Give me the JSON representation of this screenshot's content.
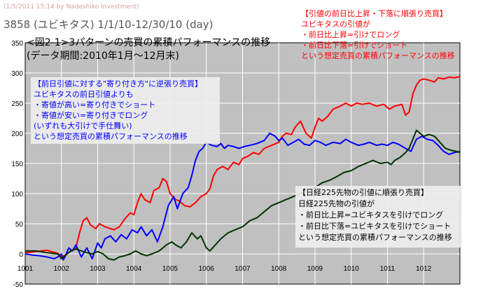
{
  "watermark": "(1/5/2011 15:14 by Nadeshiko Investment)",
  "subtitle": "3858 (ユビキタス)  1/1/10-12/30/10 (day)",
  "title_line1": "<図2-1>3パターンの売買の累積パフォーマンスの推移",
  "title_line2": "(データ期間:2010年1月〜12月末)",
  "annotations": {
    "red": {
      "lines": [
        "【引値の前日比上昇・下落に順張り売買】",
        "ユビキタスの引値が",
        "・前日比上昇=引けでロング",
        "・前日比下落=引けでショート",
        "という想定売買の累積パフォーマンスの推移"
      ],
      "color": "#ff0000"
    },
    "blue": {
      "lines": [
        "【前日引値に対する\"寄り付き方\"に逆張り売買】",
        "ユビキタスの前日引値よりも",
        "・寄値が高い=寄り付きでショート",
        "・寄値が安い=寄り付きでロング",
        "(いずれも大引けで手仕舞い)",
        "という想定売買の累積パフォーマンスの推移"
      ],
      "color": "#0000ff"
    },
    "green": {
      "lines": [
        "【日経225先物の引値に順張り売買】",
        "日経225先物の引値が",
        "・前日比上昇=ユビキタスを引けでロング",
        "・前日比下落=ユビキタスを引けでショート",
        "という想定売買の累積パフォーマンスの推移"
      ],
      "color": "#000000"
    }
  },
  "chart_data": {
    "type": "line",
    "x_categories": [
      "1001",
      "1002",
      "1003",
      "1004",
      "1005",
      "1006",
      "1007",
      "1008",
      "1009",
      "1010",
      "1011",
      "1012"
    ],
    "y_ticks": [
      -50,
      0,
      50,
      100,
      150,
      200,
      250,
      300,
      350
    ],
    "ylim": [
      -50,
      350
    ],
    "grid": true,
    "plot_background": "#c0c0c0",
    "series": [
      {
        "color": "#ff0000",
        "points": [
          [
            0.0,
            2
          ],
          [
            0.3,
            4
          ],
          [
            0.6,
            6
          ],
          [
            0.9,
            1
          ],
          [
            1.0,
            -5
          ],
          [
            1.1,
            -2
          ],
          [
            1.25,
            4
          ],
          [
            1.4,
            10
          ],
          [
            1.5,
            35
          ],
          [
            1.6,
            55
          ],
          [
            1.7,
            60
          ],
          [
            1.8,
            48
          ],
          [
            1.95,
            42
          ],
          [
            2.05,
            50
          ],
          [
            2.2,
            45
          ],
          [
            2.3,
            43
          ],
          [
            2.45,
            40
          ],
          [
            2.6,
            45
          ],
          [
            2.75,
            58
          ],
          [
            2.9,
            68
          ],
          [
            3.0,
            65
          ],
          [
            3.1,
            85
          ],
          [
            3.2,
            100
          ],
          [
            3.3,
            90
          ],
          [
            3.45,
            85
          ],
          [
            3.55,
            105
          ],
          [
            3.7,
            110
          ],
          [
            3.8,
            125
          ],
          [
            3.9,
            120
          ],
          [
            4.0,
            100
          ],
          [
            4.15,
            90
          ],
          [
            4.25,
            88
          ],
          [
            4.4,
            80
          ],
          [
            4.55,
            78
          ],
          [
            4.7,
            85
          ],
          [
            4.85,
            95
          ],
          [
            5.0,
            100
          ],
          [
            5.1,
            108
          ],
          [
            5.2,
            130
          ],
          [
            5.3,
            140
          ],
          [
            5.45,
            145
          ],
          [
            5.6,
            140
          ],
          [
            5.75,
            152
          ],
          [
            5.9,
            148
          ],
          [
            6.0,
            158
          ],
          [
            6.15,
            162
          ],
          [
            6.3,
            168
          ],
          [
            6.45,
            165
          ],
          [
            6.6,
            175
          ],
          [
            6.8,
            180
          ],
          [
            7.0,
            185
          ],
          [
            7.1,
            195
          ],
          [
            7.2,
            200
          ],
          [
            7.35,
            198
          ],
          [
            7.45,
            210
          ],
          [
            7.6,
            220
          ],
          [
            7.75,
            200
          ],
          [
            7.9,
            192
          ],
          [
            8.0,
            210
          ],
          [
            8.1,
            225
          ],
          [
            8.2,
            220
          ],
          [
            8.35,
            228
          ],
          [
            8.5,
            240
          ],
          [
            8.7,
            245
          ],
          [
            8.85,
            250
          ],
          [
            9.0,
            245
          ],
          [
            9.15,
            250
          ],
          [
            9.3,
            248
          ],
          [
            9.5,
            250
          ],
          [
            9.7,
            245
          ],
          [
            9.9,
            248
          ],
          [
            10.05,
            240
          ],
          [
            10.2,
            245
          ],
          [
            10.4,
            248
          ],
          [
            10.5,
            230
          ],
          [
            10.6,
            235
          ],
          [
            10.7,
            265
          ],
          [
            10.8,
            280
          ],
          [
            10.9,
            288
          ],
          [
            11.0,
            290
          ],
          [
            11.15,
            288
          ],
          [
            11.3,
            285
          ],
          [
            11.4,
            292
          ],
          [
            11.55,
            290
          ],
          [
            11.7,
            293
          ],
          [
            11.85,
            292
          ],
          [
            12.0,
            294
          ]
        ]
      },
      {
        "color": "#0000ff",
        "points": [
          [
            0.0,
            0
          ],
          [
            0.2,
            -2
          ],
          [
            0.4,
            -3
          ],
          [
            0.6,
            -5
          ],
          [
            0.8,
            -8
          ],
          [
            0.9,
            -5
          ],
          [
            1.0,
            0
          ],
          [
            1.05,
            -10
          ],
          [
            1.1,
            -5
          ],
          [
            1.2,
            10
          ],
          [
            1.3,
            5
          ],
          [
            1.4,
            15
          ],
          [
            1.55,
            -5
          ],
          [
            1.7,
            10
          ],
          [
            1.85,
            -8
          ],
          [
            2.0,
            18
          ],
          [
            2.1,
            10
          ],
          [
            2.2,
            25
          ],
          [
            2.35,
            30
          ],
          [
            2.5,
            20
          ],
          [
            2.65,
            32
          ],
          [
            2.8,
            25
          ],
          [
            2.95,
            40
          ],
          [
            3.1,
            35
          ],
          [
            3.2,
            45
          ],
          [
            3.35,
            30
          ],
          [
            3.5,
            40
          ],
          [
            3.65,
            20
          ],
          [
            3.8,
            45
          ],
          [
            3.95,
            80
          ],
          [
            4.1,
            95
          ],
          [
            4.2,
            75
          ],
          [
            4.35,
            100
          ],
          [
            4.5,
            110
          ],
          [
            4.6,
            130
          ],
          [
            4.7,
            155
          ],
          [
            4.8,
            170
          ],
          [
            4.9,
            175
          ],
          [
            5.0,
            185
          ],
          [
            5.15,
            180
          ],
          [
            5.3,
            178
          ],
          [
            5.4,
            183
          ],
          [
            5.5,
            175
          ],
          [
            5.6,
            180
          ],
          [
            5.75,
            178
          ],
          [
            5.9,
            175
          ],
          [
            6.05,
            178
          ],
          [
            6.2,
            180
          ],
          [
            6.4,
            183
          ],
          [
            6.6,
            188
          ],
          [
            6.75,
            200
          ],
          [
            6.9,
            195
          ],
          [
            7.0,
            188
          ],
          [
            7.1,
            192
          ],
          [
            7.25,
            180
          ],
          [
            7.4,
            185
          ],
          [
            7.55,
            190
          ],
          [
            7.7,
            182
          ],
          [
            7.85,
            180
          ],
          [
            8.0,
            188
          ],
          [
            8.15,
            185
          ],
          [
            8.3,
            180
          ],
          [
            8.5,
            185
          ],
          [
            8.7,
            183
          ],
          [
            8.85,
            190
          ],
          [
            9.0,
            185
          ],
          [
            9.2,
            180
          ],
          [
            9.35,
            182
          ],
          [
            9.5,
            185
          ],
          [
            9.7,
            180
          ],
          [
            9.85,
            182
          ],
          [
            10.0,
            180
          ],
          [
            10.15,
            185
          ],
          [
            10.3,
            182
          ],
          [
            10.5,
            175
          ],
          [
            10.65,
            170
          ],
          [
            10.8,
            190
          ],
          [
            10.95,
            195
          ],
          [
            11.1,
            190
          ],
          [
            11.25,
            188
          ],
          [
            11.4,
            180
          ],
          [
            11.55,
            170
          ],
          [
            11.7,
            165
          ],
          [
            11.85,
            168
          ],
          [
            12.0,
            170
          ]
        ]
      },
      {
        "color": "#003300",
        "points": [
          [
            0.0,
            5
          ],
          [
            0.3,
            5
          ],
          [
            0.6,
            2
          ],
          [
            0.9,
            0
          ],
          [
            1.0,
            -8
          ],
          [
            1.1,
            -3
          ],
          [
            1.25,
            5
          ],
          [
            1.4,
            8
          ],
          [
            1.55,
            5
          ],
          [
            1.7,
            2
          ],
          [
            1.85,
            0
          ],
          [
            2.0,
            4
          ],
          [
            2.15,
            0
          ],
          [
            2.3,
            -8
          ],
          [
            2.45,
            -10
          ],
          [
            2.6,
            -5
          ],
          [
            2.75,
            -3
          ],
          [
            2.9,
            0
          ],
          [
            3.05,
            5
          ],
          [
            3.2,
            0
          ],
          [
            3.35,
            -3
          ],
          [
            3.5,
            0
          ],
          [
            3.7,
            5
          ],
          [
            3.9,
            15
          ],
          [
            4.05,
            20
          ],
          [
            4.15,
            15
          ],
          [
            4.3,
            10
          ],
          [
            4.45,
            20
          ],
          [
            4.6,
            35
          ],
          [
            4.75,
            25
          ],
          [
            4.85,
            30
          ],
          [
            5.0,
            10
          ],
          [
            5.1,
            5
          ],
          [
            5.25,
            15
          ],
          [
            5.4,
            25
          ],
          [
            5.6,
            35
          ],
          [
            5.8,
            40
          ],
          [
            6.0,
            45
          ],
          [
            6.2,
            55
          ],
          [
            6.4,
            60
          ],
          [
            6.6,
            70
          ],
          [
            6.8,
            80
          ],
          [
            7.0,
            85
          ],
          [
            7.2,
            90
          ],
          [
            7.4,
            95
          ],
          [
            7.6,
            100
          ],
          [
            7.8,
            105
          ],
          [
            8.0,
            110
          ],
          [
            8.2,
            118
          ],
          [
            8.4,
            122
          ],
          [
            8.6,
            128
          ],
          [
            8.8,
            135
          ],
          [
            9.0,
            138
          ],
          [
            9.2,
            145
          ],
          [
            9.4,
            150
          ],
          [
            9.6,
            155
          ],
          [
            9.8,
            150
          ],
          [
            10.0,
            152
          ],
          [
            10.1,
            148
          ],
          [
            10.2,
            155
          ],
          [
            10.35,
            160
          ],
          [
            10.5,
            168
          ],
          [
            10.6,
            175
          ],
          [
            10.7,
            190
          ],
          [
            10.8,
            205
          ],
          [
            10.9,
            200
          ],
          [
            11.0,
            195
          ],
          [
            11.15,
            198
          ],
          [
            11.3,
            195
          ],
          [
            11.45,
            185
          ],
          [
            11.6,
            175
          ],
          [
            11.75,
            172
          ],
          [
            11.9,
            170
          ],
          [
            12.0,
            168
          ]
        ]
      }
    ]
  }
}
